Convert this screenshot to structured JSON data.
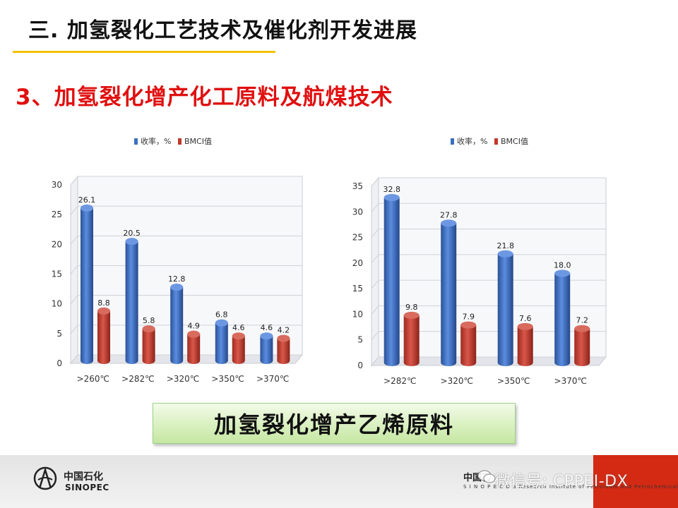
{
  "slide": {
    "title": "三. 加氢裂化工艺技术及催化剂开发进展",
    "subtitle": "3、加氢裂化增产化工原料及航煤技术",
    "banner": "加氢裂化增产乙烯原料"
  },
  "footer": {
    "logo_cn": "中国石化",
    "logo_en": "SINOPEC",
    "institute_cn": "中国石",
    "institute_en": "S I N O P E C   D a   Research Institute of Petroleum and Petrochemicals",
    "watermark": "微信号: CPPEI-DX"
  },
  "colors": {
    "blue": "#3d6fc0",
    "red": "#c0392b",
    "title_red": "#e01010",
    "underline": "#f2c200"
  },
  "chart_data": [
    {
      "type": "bar",
      "categories": [
        ">260℃",
        ">282℃",
        ">320℃",
        ">350℃",
        ">370℃"
      ],
      "series": [
        {
          "name": "收率，%",
          "values": [
            26.1,
            20.5,
            12.8,
            6.8,
            4.6
          ],
          "labels": [
            "26.1",
            "20.5",
            "12.8",
            "6.8",
            "4.6"
          ]
        },
        {
          "name": "BMCI值",
          "values": [
            8.8,
            5.8,
            4.9,
            4.6,
            4.2
          ],
          "labels": [
            "8.8",
            "5.8",
            "4.9",
            "4.6",
            "4.2"
          ]
        }
      ],
      "ylim": [
        0,
        30
      ],
      "yticks": [
        "0",
        "5",
        "10",
        "15",
        "20",
        "25",
        "30"
      ],
      "legend": "top"
    },
    {
      "type": "bar",
      "categories": [
        ">282℃",
        ">320℃",
        ">350℃",
        ">370℃"
      ],
      "series": [
        {
          "name": "收率，%",
          "values": [
            32.8,
            27.8,
            21.8,
            18.0
          ],
          "labels": [
            "32.8",
            "27.8",
            "21.8",
            "18.0"
          ]
        },
        {
          "name": "BMCI值",
          "values": [
            9.8,
            7.9,
            7.6,
            7.2
          ],
          "labels": [
            "9.8",
            "7.9",
            "7.6",
            "7.2"
          ]
        }
      ],
      "ylim": [
        0,
        35
      ],
      "yticks": [
        "0",
        "5",
        "10",
        "15",
        "20",
        "25",
        "30",
        "35"
      ],
      "legend": "top"
    }
  ]
}
